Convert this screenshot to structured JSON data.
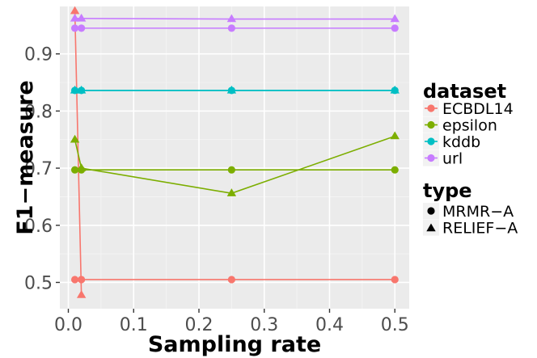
{
  "chart_data": {
    "type": "line",
    "title": "",
    "xlabel": "Sampling rate",
    "ylabel": "F1−measure",
    "xlim": [
      -0.013,
      0.522
    ],
    "ylim": [
      0.454,
      0.983
    ],
    "xticks": [
      0.0,
      0.1,
      0.2,
      0.3,
      0.4,
      0.5
    ],
    "xtick_labels": [
      "0.0",
      "0.1",
      "0.2",
      "0.3",
      "0.4",
      "0.5"
    ],
    "yticks": [
      0.5,
      0.6,
      0.7,
      0.8,
      0.9
    ],
    "ytick_labels": [
      "0.5",
      "0.6",
      "0.7",
      "0.8",
      "0.9"
    ],
    "x": [
      0.01,
      0.02,
      0.25,
      0.5
    ],
    "grid": true,
    "legend": {
      "dataset": {
        "title": "dataset",
        "entries": [
          {
            "label": "ECBDL14",
            "color": "#F8766D"
          },
          {
            "label": "epsilon",
            "color": "#7CAE00"
          },
          {
            "label": "kddb",
            "color": "#00BFC4"
          },
          {
            "label": "url",
            "color": "#C77CFF"
          }
        ]
      },
      "type": {
        "title": "type",
        "entries": [
          {
            "label": "MRMR−A",
            "shape": "circle"
          },
          {
            "label": "RELIEF−A",
            "shape": "triangle"
          }
        ]
      }
    },
    "series": [
      {
        "dataset": "ECBDL14",
        "type": "MRMR−A",
        "color": "#F8766D",
        "values": [
          0.505,
          0.505,
          0.505,
          0.505
        ]
      },
      {
        "dataset": "ECBDL14",
        "type": "RELIEF−A",
        "color": "#F8766D",
        "values": [
          0.975,
          0.478,
          null,
          null
        ]
      },
      {
        "dataset": "epsilon",
        "type": "MRMR−A",
        "color": "#7CAE00",
        "values": [
          0.697,
          0.697,
          0.697,
          0.697
        ]
      },
      {
        "dataset": "epsilon",
        "type": "RELIEF−A",
        "color": "#7CAE00",
        "values": [
          0.75,
          0.7,
          0.656,
          0.756
        ]
      },
      {
        "dataset": "kddb",
        "type": "MRMR−A",
        "color": "#00BFC4",
        "values": [
          0.836,
          0.836,
          0.836,
          0.836
        ]
      },
      {
        "dataset": "kddb",
        "type": "RELIEF−A",
        "color": "#00BFC4",
        "values": [
          0.836,
          0.836,
          0.836,
          0.836
        ]
      },
      {
        "dataset": "url",
        "type": "MRMR−A",
        "color": "#C77CFF",
        "values": [
          0.945,
          0.945,
          0.945,
          0.945
        ]
      },
      {
        "dataset": "url",
        "type": "RELIEF−A",
        "color": "#C77CFF",
        "values": [
          0.962,
          0.962,
          0.961,
          0.961
        ]
      }
    ]
  }
}
